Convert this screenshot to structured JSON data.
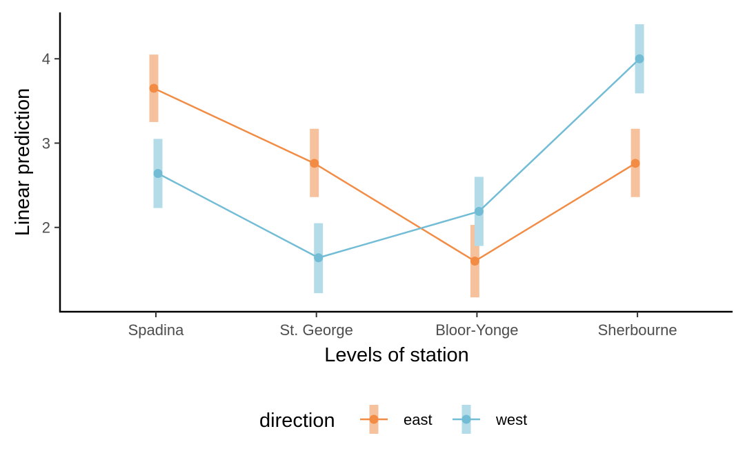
{
  "chart_data": {
    "type": "line",
    "xlabel": "Levels of station",
    "ylabel": "Linear prediction",
    "categories": [
      "Spadina",
      "St. George",
      "Bloor-Yonge",
      "Sherbourne"
    ],
    "yticks": [
      2,
      3,
      4
    ],
    "ylim": [
      1.0,
      4.55
    ],
    "grid": false,
    "legend": {
      "title": "direction",
      "position": "bottom"
    },
    "series": [
      {
        "name": "east",
        "color": "#F28C45",
        "band_color": "#F6C29E",
        "values": [
          3.65,
          2.76,
          1.6,
          2.76
        ],
        "lower": [
          3.25,
          2.36,
          1.17,
          2.36
        ],
        "upper": [
          4.05,
          3.17,
          2.03,
          3.17
        ]
      },
      {
        "name": "west",
        "color": "#72BCD5",
        "band_color": "#B3DCE8",
        "values": [
          2.64,
          1.64,
          2.19,
          4.0
        ],
        "lower": [
          2.23,
          1.22,
          1.78,
          3.59
        ],
        "upper": [
          3.05,
          2.05,
          2.6,
          4.41
        ]
      }
    ]
  }
}
